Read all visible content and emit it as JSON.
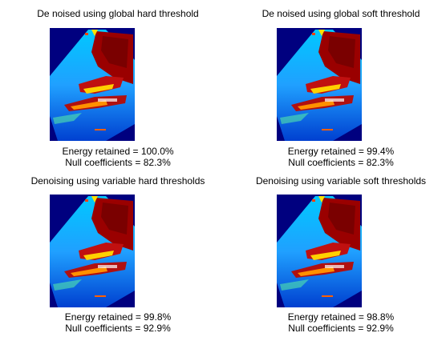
{
  "panels": [
    {
      "title": "De noised using global hard threshold",
      "lines": [
        "Energy retained = 100.0%",
        "Null coefficients = 82.3%"
      ]
    },
    {
      "title": "De noised using global soft threshold",
      "lines": [
        "Energy retained = 99.4%",
        "Null coefficients = 82.3%"
      ]
    },
    {
      "title": "Denoising using variable hard thresholds",
      "lines": [
        "Energy retained = 99.8%",
        "Null coefficients = 92.9%"
      ]
    },
    {
      "title": "Denoising using variable soft thresholds",
      "lines": [
        "Energy retained = 98.8%",
        "Null coefficients = 92.9%"
      ]
    }
  ]
}
